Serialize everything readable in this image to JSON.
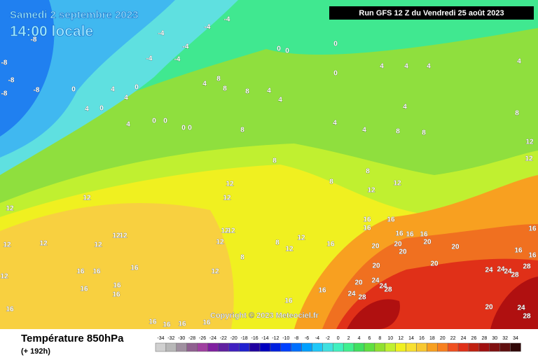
{
  "header": {
    "date": "Samedi 2 septembre 2023",
    "time": "14:00 locale"
  },
  "run": "Run GFS 12 Z du Vendredi 25 août 2023",
  "copyright": "Copyright © 2023 Meteociel.fr",
  "legend": {
    "title": "Température 850hPa",
    "subtitle": "(+ 192h)",
    "scale": [
      -34,
      -32,
      -30,
      -28,
      -26,
      -24,
      -22,
      -20,
      -18,
      -16,
      -14,
      -12,
      -10,
      -8,
      -6,
      -4,
      -2,
      0,
      2,
      4,
      6,
      8,
      10,
      12,
      14,
      16,
      18,
      20,
      22,
      24,
      26,
      28,
      30,
      32,
      34
    ],
    "colors": [
      "#d0d0d0",
      "#b8b8b8",
      "#a090a0",
      "#906090",
      "#a040a0",
      "#8020a0",
      "#6020a0",
      "#4020c0",
      "#2020d0",
      "#2000a0",
      "#0000c0",
      "#0020e0",
      "#0040ff",
      "#0070ff",
      "#00a0ff",
      "#20c8f8",
      "#40e0e0",
      "#40f0c0",
      "#40f090",
      "#40e060",
      "#60e040",
      "#90e030",
      "#c0f030",
      "#f0f020",
      "#f8e030",
      "#f8c830",
      "#f8a020",
      "#f88020",
      "#f05020",
      "#e03018",
      "#c02010",
      "#a01010",
      "#801010",
      "#601010",
      "#300808"
    ]
  },
  "map_labels": [
    -4,
    -4,
    -4,
    -4,
    -4,
    -4,
    -8,
    -8,
    -8,
    -8,
    -8,
    0,
    4,
    0,
    4,
    4,
    0,
    4,
    0,
    0,
    0,
    0,
    4,
    8,
    8,
    8,
    4,
    4,
    0,
    0,
    0,
    0,
    4,
    4,
    4,
    4,
    4,
    4,
    4,
    8,
    8,
    8,
    8,
    8,
    8,
    12,
    12,
    8,
    12,
    12,
    12,
    12,
    12,
    12,
    12,
    12,
    12,
    12,
    12,
    12,
    12,
    12,
    12,
    12,
    16,
    16,
    16,
    16,
    16,
    16,
    16,
    16,
    16,
    16,
    16,
    8,
    8,
    12,
    12,
    16,
    16,
    16,
    16,
    16,
    16,
    16,
    20,
    20,
    20,
    20,
    20,
    20,
    20,
    20,
    24,
    24,
    28,
    24,
    28,
    16,
    16,
    24,
    24,
    28,
    28,
    20,
    24,
    28,
    16,
    16,
    16,
    24
  ]
}
